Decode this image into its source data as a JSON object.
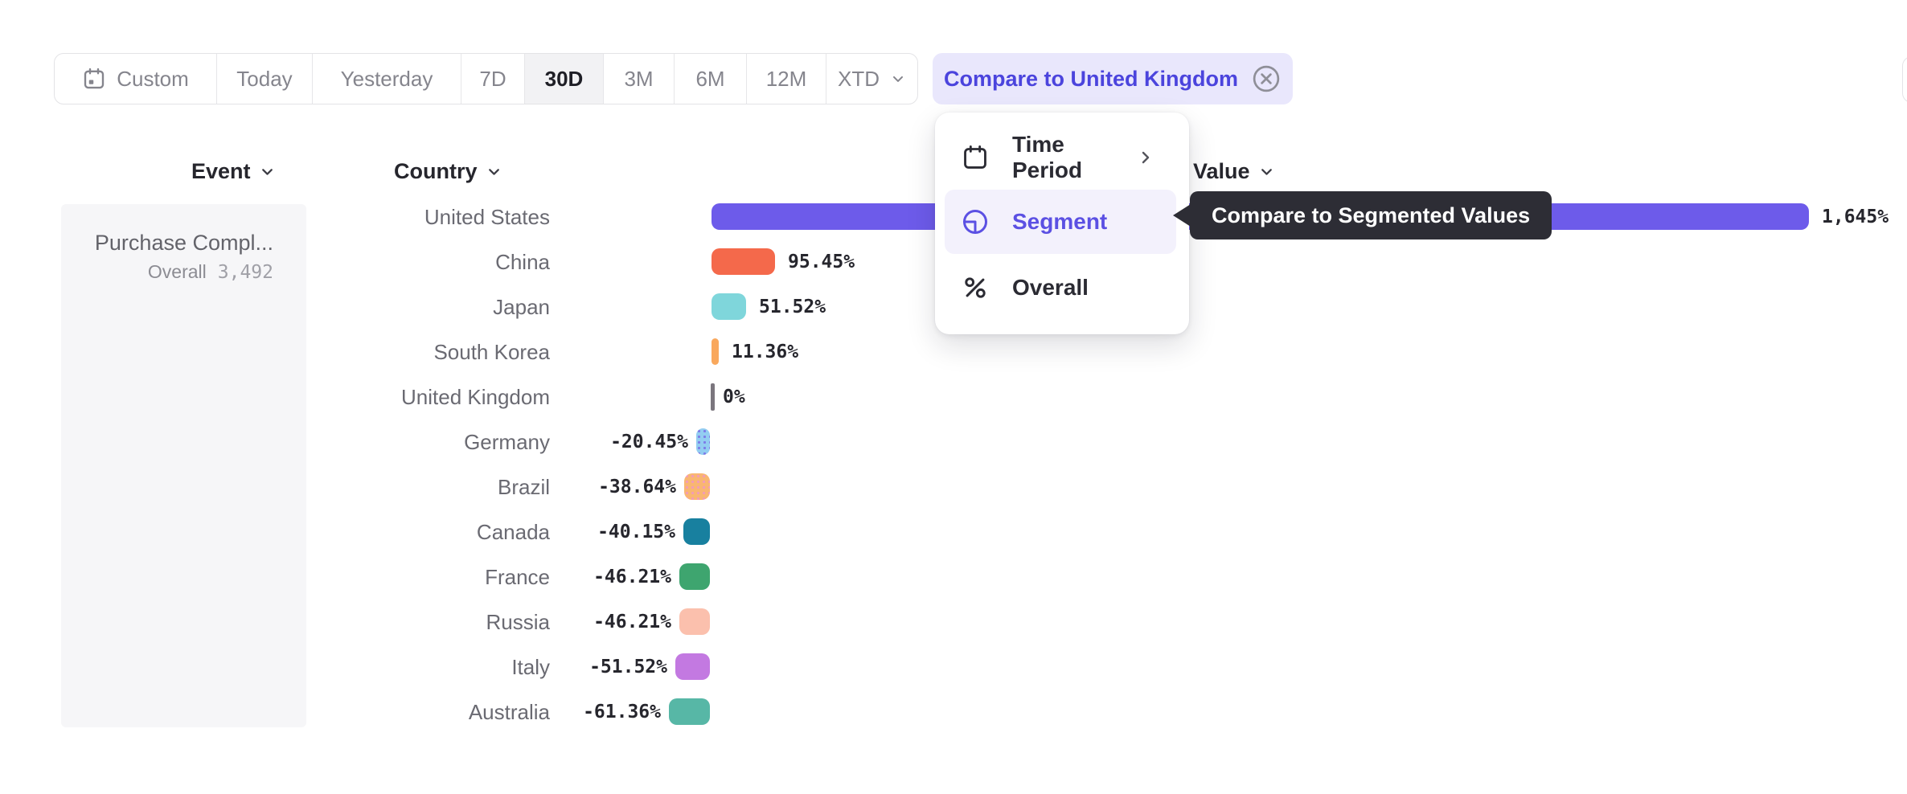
{
  "toolbar": {
    "items": [
      {
        "label": "Custom",
        "icon": "calendar-icon",
        "selected": false
      },
      {
        "label": "Today",
        "selected": false
      },
      {
        "label": "Yesterday",
        "selected": false
      },
      {
        "label": "7D",
        "selected": false
      },
      {
        "label": "30D",
        "selected": true
      },
      {
        "label": "3M",
        "selected": false
      },
      {
        "label": "6M",
        "selected": false
      },
      {
        "label": "12M",
        "selected": false
      },
      {
        "label": "XTD",
        "icon": "chevron-down-icon",
        "selected": false
      }
    ]
  },
  "compare_chip": {
    "label": "Compare to United Kingdom"
  },
  "headers": {
    "event": "Event",
    "country": "Country",
    "value": "Value"
  },
  "event_panel": {
    "name": "Purchase Compl...",
    "overall_label": "Overall",
    "overall_value": "3,492"
  },
  "menu": {
    "items": [
      {
        "label": "Time Period",
        "icon": "calendar-icon",
        "has_submenu": true,
        "selected": false
      },
      {
        "label": "Segment",
        "icon": "segment-icon",
        "has_submenu": false,
        "selected": true
      },
      {
        "label": "Overall",
        "icon": "percent-icon",
        "has_submenu": false,
        "selected": false
      }
    ]
  },
  "tooltip": {
    "text": "Compare to Segmented Values"
  },
  "colors": {
    "accent_purple": "#5b50e3",
    "chip_bg": "#e9e7fc",
    "chip_text": "#4b44dd",
    "menu_highlight": "#f3f1fc",
    "tooltip_bg": "#2d2d35",
    "panel_bg": "#f6f6f8",
    "border": "#e3e3e6",
    "zero_marker": "#7b767e"
  },
  "chart_data": {
    "type": "bar",
    "orientation": "horizontal",
    "title": "",
    "xlabel": "",
    "ylabel": "",
    "unit": "%",
    "baseline": 0,
    "grid": false,
    "legend": false,
    "value_labels_shown": true,
    "categories": [
      "United States",
      "China",
      "Japan",
      "South Korea",
      "United Kingdom",
      "Germany",
      "Brazil",
      "Canada",
      "France",
      "Russia",
      "Italy",
      "Australia"
    ],
    "values": [
      1645,
      95.45,
      51.52,
      11.36,
      0,
      -20.45,
      -38.64,
      -40.15,
      -46.21,
      -46.21,
      -51.52,
      -61.36
    ],
    "value_labels": [
      "1,645%",
      "95.45%",
      "51.52%",
      "11.36%",
      "0%",
      "-20.45%",
      "-38.64%",
      "-40.15%",
      "-46.21%",
      "-46.21%",
      "-51.52%",
      "-61.36%"
    ],
    "bar_colors": [
      "#6d5bea",
      "#f4694b",
      "#7fd6db",
      "#f9a85d",
      "#7b767e",
      "#93cdf1",
      "#f9b672",
      "#18809f",
      "#3ea56f",
      "#fbc0ad",
      "#c379e1",
      "#57b7a6"
    ],
    "bar_patterns": [
      null,
      null,
      null,
      null,
      null,
      "dots",
      "dots",
      null,
      null,
      null,
      null,
      null
    ],
    "pattern_dot_colors": [
      null,
      null,
      null,
      null,
      null,
      "#7d7ce8",
      "#f29bb8",
      null,
      null,
      null,
      null,
      null
    ]
  }
}
